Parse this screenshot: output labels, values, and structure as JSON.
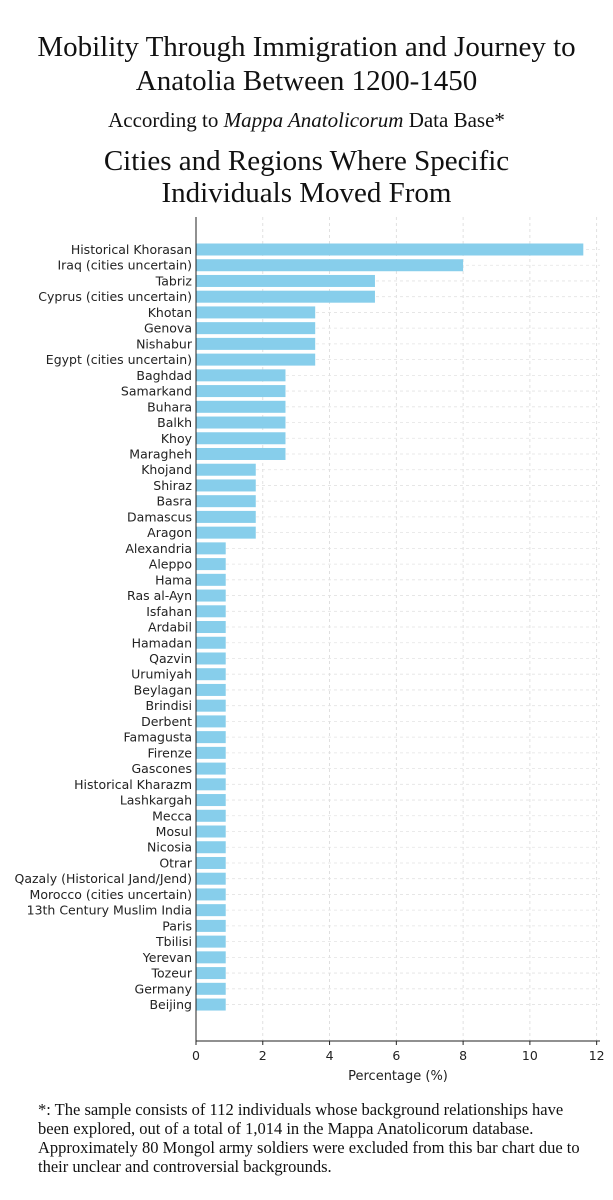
{
  "header": {
    "title_line1": "Mobility Through Immigration and Journey to",
    "title_line2": "Anatolia Between 1200-1450",
    "subtitle_prefix": "According to ",
    "subtitle_italic": "Mappa Anatolicorum",
    "subtitle_suffix": " Data Base*"
  },
  "chart_data": {
    "type": "bar",
    "orientation": "horizontal",
    "title_line1": "Cities and Regions Where Specific",
    "title_line2": "Individuals Moved From",
    "xlabel": "Percentage (%)",
    "ylabel": "",
    "xlim": [
      0,
      12.1
    ],
    "xticks": [
      0,
      2,
      4,
      6,
      8,
      10,
      12
    ],
    "grid": true,
    "bar_color": "#87CEEB",
    "categories": [
      "Historical Khorasan",
      "Iraq (cities uncertain)",
      "Tabriz",
      "Cyprus (cities uncertain)",
      "Khotan",
      "Genova",
      "Nishabur",
      "Egypt (cities uncertain)",
      "Baghdad",
      "Samarkand",
      "Buhara",
      "Balkh",
      "Khoy",
      "Maragheh",
      "Khojand",
      "Shiraz",
      "Basra",
      "Damascus",
      "Aragon",
      "Alexandria",
      "Aleppo",
      "Hama",
      "Ras al-Ayn",
      "Isfahan",
      "Ardabil",
      "Hamadan",
      "Qazvin",
      "Urumiyah",
      "Beylagan",
      "Brindisi",
      "Derbent",
      "Famagusta",
      "Firenze",
      "Gascones",
      "Historical Kharazm",
      "Lashkargah",
      "Mecca",
      "Mosul",
      "Nicosia",
      "Otrar",
      "Qazaly (Historical Jand/Jend)",
      "Morocco (cities uncertain)",
      "13th Century Muslim India",
      "Paris",
      "Tbilisi",
      "Yerevan",
      "Tozeur",
      "Germany",
      "Beijing"
    ],
    "values": [
      11.6,
      8.0,
      5.36,
      5.36,
      3.57,
      3.57,
      3.57,
      3.57,
      2.68,
      2.68,
      2.68,
      2.68,
      2.68,
      2.68,
      1.79,
      1.79,
      1.79,
      1.79,
      1.79,
      0.89,
      0.89,
      0.89,
      0.89,
      0.89,
      0.89,
      0.89,
      0.89,
      0.89,
      0.89,
      0.89,
      0.89,
      0.89,
      0.89,
      0.89,
      0.89,
      0.89,
      0.89,
      0.89,
      0.89,
      0.89,
      0.89,
      0.89,
      0.89,
      0.89,
      0.89,
      0.89,
      0.89,
      0.89,
      0.89
    ]
  },
  "footnote": "*: The sample consists of 112 individuals whose background relationships have been  explored,  out of a total of 1,014 in the Mappa Anatolicorum database. Approximately 80 Mongol army soldiers were excluded from this bar chart due to their unclear and controversial backgrounds."
}
